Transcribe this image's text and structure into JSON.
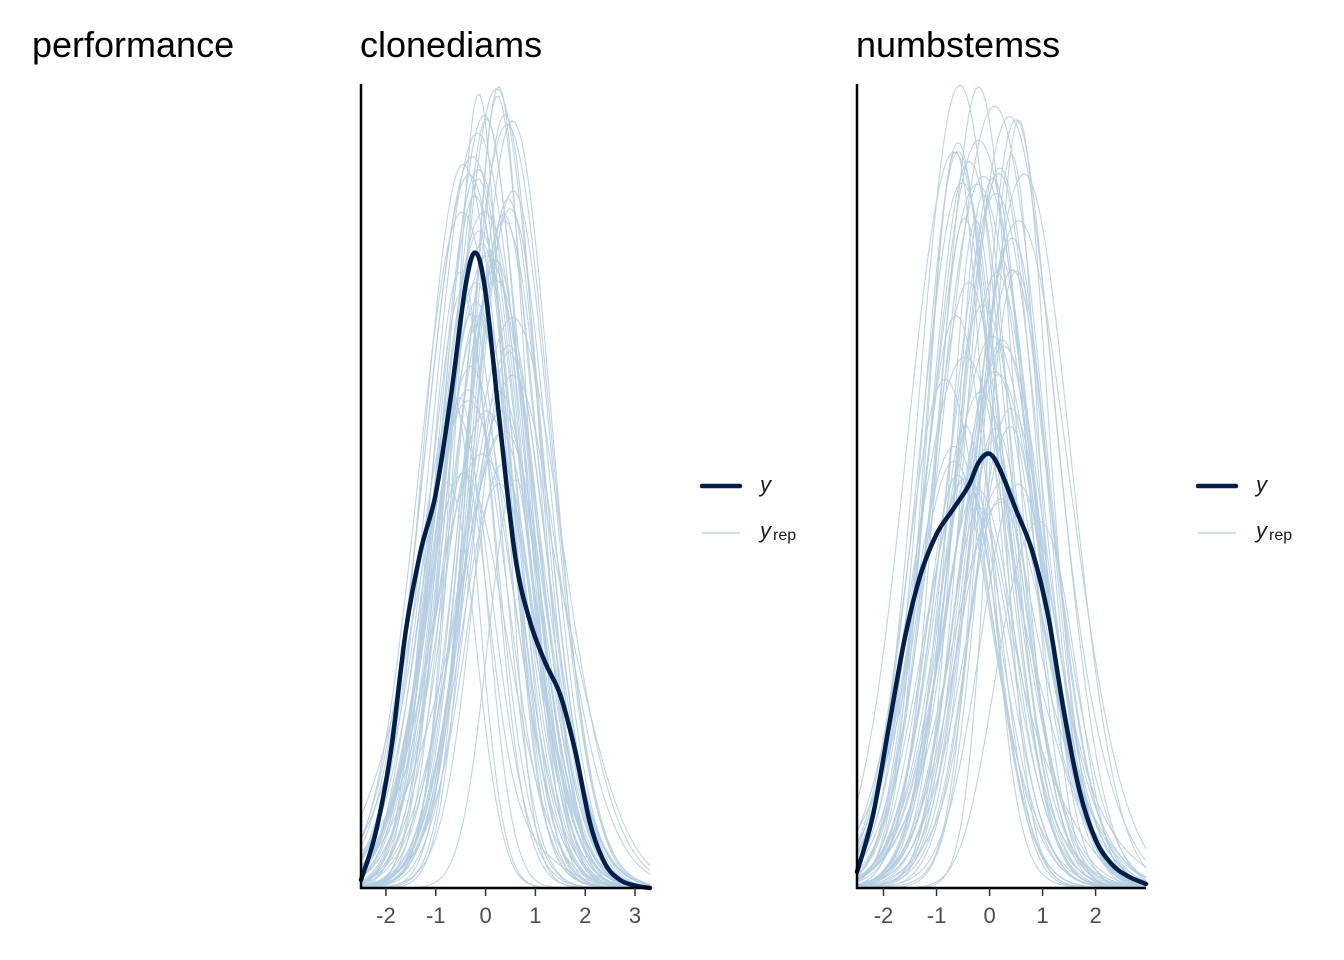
{
  "titles": {
    "left": "performance",
    "panel1": "clonediams",
    "panel2": "numbstemss"
  },
  "legend": {
    "y_label": "y",
    "yrep_label": "y",
    "yrep_sub": "rep"
  },
  "colors": {
    "y": "#011f4b",
    "yrep": "#b3cde0"
  },
  "chart_data": [
    {
      "type": "line",
      "title": "clonediams",
      "subtype": "posterior predictive density overlay",
      "xlim": [
        -2.5,
        3.3
      ],
      "ticks": [
        -2,
        -1,
        0,
        1,
        2,
        3
      ],
      "tick_labels": [
        "-2",
        "-1",
        "0",
        "1",
        "2",
        "3"
      ],
      "series": [
        {
          "name": "y",
          "x": [
            -2.5,
            -2.2,
            -1.9,
            -1.6,
            -1.3,
            -1.0,
            -0.7,
            -0.4,
            -0.2,
            0.0,
            0.3,
            0.6,
            0.9,
            1.2,
            1.5,
            1.8,
            2.1,
            2.4,
            2.7,
            3.0,
            3.3
          ],
          "y": [
            0.01,
            0.07,
            0.17,
            0.32,
            0.42,
            0.49,
            0.61,
            0.75,
            0.79,
            0.74,
            0.57,
            0.41,
            0.33,
            0.28,
            0.24,
            0.17,
            0.08,
            0.03,
            0.01,
            0.003,
            0.0
          ]
        }
      ],
      "yrep_draws": 60,
      "yrep_mode_range": [
        -0.6,
        0.6
      ],
      "yrep_peak_range": [
        0.5,
        1.0
      ],
      "ylim": [
        0,
        1.0
      ]
    },
    {
      "type": "line",
      "title": "numbstemss",
      "subtype": "posterior predictive density overlay",
      "xlim": [
        -2.5,
        2.95
      ],
      "ticks": [
        -2,
        -1,
        0,
        1,
        2
      ],
      "tick_labels": [
        "-2",
        "-1",
        "0",
        "1",
        "2"
      ],
      "series": [
        {
          "name": "y",
          "x": [
            -2.5,
            -2.2,
            -1.9,
            -1.6,
            -1.3,
            -1.0,
            -0.7,
            -0.4,
            -0.2,
            0.0,
            0.2,
            0.5,
            0.8,
            1.1,
            1.4,
            1.7,
            2.0,
            2.3,
            2.6,
            2.95
          ],
          "y": [
            0.02,
            0.09,
            0.2,
            0.31,
            0.39,
            0.44,
            0.47,
            0.5,
            0.53,
            0.54,
            0.52,
            0.47,
            0.42,
            0.34,
            0.22,
            0.12,
            0.06,
            0.03,
            0.015,
            0.005
          ]
        }
      ],
      "yrep_draws": 60,
      "yrep_mode_range": [
        -0.7,
        0.5
      ],
      "yrep_peak_range": [
        0.45,
        1.0
      ],
      "ylim": [
        0,
        1.0
      ]
    }
  ]
}
